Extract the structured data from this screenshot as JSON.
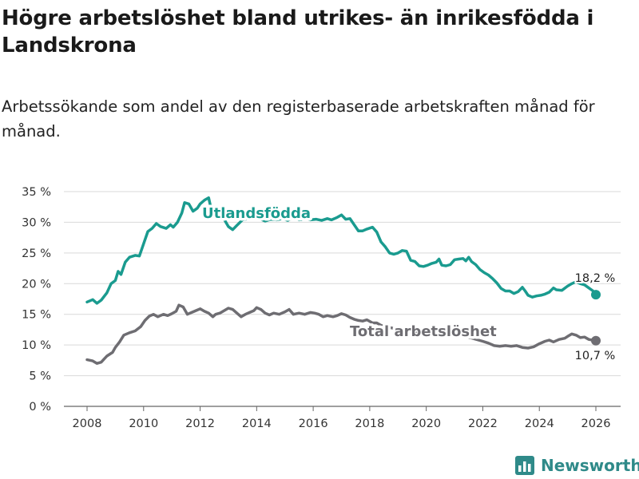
{
  "title": "Högre arbetslöshet bland utrikes- än inrikesfödda i Landskrona",
  "subtitle": "Arbetssökande som andel av den registerbaserade arbetskraften månad för månad.",
  "brand": {
    "name": "Newsworthy",
    "color": "#2f8a89"
  },
  "chart_data": {
    "type": "line",
    "ylim": [
      0,
      35
    ],
    "xlim": [
      2008,
      2026
    ],
    "yticks": [
      {
        "value": 0,
        "label": "0 %"
      },
      {
        "value": 5,
        "label": "5 %"
      },
      {
        "value": 10,
        "label": "10 %"
      },
      {
        "value": 15,
        "label": "15 %"
      },
      {
        "value": 20,
        "label": "20 %"
      },
      {
        "value": 25,
        "label": "25 %"
      },
      {
        "value": 30,
        "label": "30 %"
      },
      {
        "value": 35,
        "label": "35 %"
      }
    ],
    "xticks": [
      {
        "value": 2008,
        "label": "2008"
      },
      {
        "value": 2010,
        "label": "2010"
      },
      {
        "value": 2012,
        "label": "2012"
      },
      {
        "value": 2014,
        "label": "2014"
      },
      {
        "value": 2016,
        "label": "2016"
      },
      {
        "value": 2018,
        "label": "2018"
      },
      {
        "value": 2020,
        "label": "2020"
      },
      {
        "value": 2022,
        "label": "2022"
      },
      {
        "value": 2024,
        "label": "2024"
      },
      {
        "value": 2026,
        "label": "2026"
      }
    ],
    "grid": true,
    "series": [
      {
        "name": "Utlandsfödda",
        "color": "#1a9b8f",
        "end_label": "18,2 %",
        "points": [
          [
            2008.0,
            17.0
          ],
          [
            2008.2,
            17.4
          ],
          [
            2008.35,
            16.8
          ],
          [
            2008.5,
            17.3
          ],
          [
            2008.7,
            18.5
          ],
          [
            2008.85,
            20.0
          ],
          [
            2009.0,
            20.5
          ],
          [
            2009.1,
            22.0
          ],
          [
            2009.2,
            21.5
          ],
          [
            2009.35,
            23.5
          ],
          [
            2009.5,
            24.3
          ],
          [
            2009.7,
            24.6
          ],
          [
            2009.85,
            24.5
          ],
          [
            2010.0,
            26.5
          ],
          [
            2010.15,
            28.5
          ],
          [
            2010.3,
            29.0
          ],
          [
            2010.45,
            29.8
          ],
          [
            2010.6,
            29.3
          ],
          [
            2010.8,
            29.0
          ],
          [
            2010.95,
            29.6
          ],
          [
            2011.05,
            29.2
          ],
          [
            2011.2,
            30.0
          ],
          [
            2011.35,
            31.5
          ],
          [
            2011.45,
            33.2
          ],
          [
            2011.6,
            33.0
          ],
          [
            2011.75,
            31.8
          ],
          [
            2011.9,
            32.3
          ],
          [
            2012.0,
            33.0
          ],
          [
            2012.15,
            33.6
          ],
          [
            2012.3,
            34.0
          ],
          [
            2012.4,
            32.0
          ],
          [
            2012.55,
            32.5
          ],
          [
            2012.7,
            31.5
          ],
          [
            2012.85,
            30.5
          ],
          [
            2013.0,
            29.3
          ],
          [
            2013.15,
            28.8
          ],
          [
            2013.3,
            29.5
          ],
          [
            2013.5,
            30.4
          ],
          [
            2013.7,
            30.6
          ],
          [
            2013.85,
            30.9
          ],
          [
            2014.0,
            30.8
          ],
          [
            2014.15,
            30.5
          ],
          [
            2014.3,
            30.2
          ],
          [
            2014.5,
            30.5
          ],
          [
            2014.7,
            30.4
          ],
          [
            2014.9,
            30.6
          ],
          [
            2015.1,
            30.3
          ],
          [
            2015.3,
            30.8
          ],
          [
            2015.5,
            30.4
          ],
          [
            2015.7,
            30.6
          ],
          [
            2015.9,
            30.4
          ],
          [
            2016.1,
            30.5
          ],
          [
            2016.3,
            30.3
          ],
          [
            2016.5,
            30.6
          ],
          [
            2016.65,
            30.4
          ],
          [
            2016.85,
            30.8
          ],
          [
            2017.0,
            31.2
          ],
          [
            2017.15,
            30.5
          ],
          [
            2017.3,
            30.6
          ],
          [
            2017.45,
            29.6
          ],
          [
            2017.6,
            28.6
          ],
          [
            2017.75,
            28.6
          ],
          [
            2017.9,
            28.9
          ],
          [
            2018.1,
            29.2
          ],
          [
            2018.25,
            28.4
          ],
          [
            2018.4,
            26.8
          ],
          [
            2018.55,
            26.0
          ],
          [
            2018.7,
            25.0
          ],
          [
            2018.85,
            24.8
          ],
          [
            2019.0,
            25.0
          ],
          [
            2019.15,
            25.4
          ],
          [
            2019.3,
            25.3
          ],
          [
            2019.45,
            23.8
          ],
          [
            2019.6,
            23.6
          ],
          [
            2019.75,
            22.9
          ],
          [
            2019.9,
            22.8
          ],
          [
            2020.05,
            23.0
          ],
          [
            2020.2,
            23.3
          ],
          [
            2020.35,
            23.5
          ],
          [
            2020.45,
            24.0
          ],
          [
            2020.55,
            23.0
          ],
          [
            2020.7,
            22.9
          ],
          [
            2020.85,
            23.1
          ],
          [
            2021.0,
            23.9
          ],
          [
            2021.15,
            24.0
          ],
          [
            2021.3,
            24.1
          ],
          [
            2021.4,
            23.7
          ],
          [
            2021.5,
            24.3
          ],
          [
            2021.6,
            23.6
          ],
          [
            2021.75,
            23.1
          ],
          [
            2021.9,
            22.3
          ],
          [
            2022.05,
            21.8
          ],
          [
            2022.2,
            21.4
          ],
          [
            2022.35,
            20.8
          ],
          [
            2022.5,
            20.1
          ],
          [
            2022.65,
            19.2
          ],
          [
            2022.8,
            18.8
          ],
          [
            2022.95,
            18.8
          ],
          [
            2023.1,
            18.4
          ],
          [
            2023.25,
            18.7
          ],
          [
            2023.4,
            19.4
          ],
          [
            2023.5,
            18.8
          ],
          [
            2023.6,
            18.1
          ],
          [
            2023.75,
            17.8
          ],
          [
            2023.9,
            18.0
          ],
          [
            2024.05,
            18.1
          ],
          [
            2024.2,
            18.3
          ],
          [
            2024.35,
            18.6
          ],
          [
            2024.5,
            19.3
          ],
          [
            2024.6,
            19.0
          ],
          [
            2024.8,
            18.9
          ],
          [
            2025.0,
            19.6
          ],
          [
            2025.15,
            20.0
          ],
          [
            2025.3,
            20.3
          ],
          [
            2025.45,
            20.0
          ],
          [
            2025.6,
            19.8
          ],
          [
            2025.75,
            19.3
          ],
          [
            2025.9,
            18.8
          ],
          [
            2026.0,
            18.2
          ]
        ]
      },
      {
        "name": "Total arbetslöshet",
        "color": "#6e6d72",
        "end_label": "10,7 %",
        "points": [
          [
            2008.0,
            7.6
          ],
          [
            2008.2,
            7.4
          ],
          [
            2008.35,
            7.0
          ],
          [
            2008.5,
            7.2
          ],
          [
            2008.7,
            8.2
          ],
          [
            2008.9,
            8.8
          ],
          [
            2009.0,
            9.6
          ],
          [
            2009.15,
            10.5
          ],
          [
            2009.3,
            11.6
          ],
          [
            2009.5,
            12.0
          ],
          [
            2009.7,
            12.3
          ],
          [
            2009.9,
            13.0
          ],
          [
            2010.05,
            14.0
          ],
          [
            2010.2,
            14.7
          ],
          [
            2010.35,
            15.0
          ],
          [
            2010.5,
            14.6
          ],
          [
            2010.7,
            15.0
          ],
          [
            2010.85,
            14.8
          ],
          [
            2011.0,
            15.1
          ],
          [
            2011.15,
            15.5
          ],
          [
            2011.25,
            16.5
          ],
          [
            2011.4,
            16.2
          ],
          [
            2011.55,
            15.0
          ],
          [
            2011.7,
            15.3
          ],
          [
            2011.85,
            15.6
          ],
          [
            2012.0,
            15.9
          ],
          [
            2012.15,
            15.5
          ],
          [
            2012.3,
            15.2
          ],
          [
            2012.45,
            14.6
          ],
          [
            2012.55,
            15.0
          ],
          [
            2012.7,
            15.2
          ],
          [
            2012.85,
            15.6
          ],
          [
            2013.0,
            16.0
          ],
          [
            2013.15,
            15.8
          ],
          [
            2013.3,
            15.2
          ],
          [
            2013.45,
            14.6
          ],
          [
            2013.6,
            15.0
          ],
          [
            2013.75,
            15.3
          ],
          [
            2013.9,
            15.6
          ],
          [
            2014.0,
            16.1
          ],
          [
            2014.15,
            15.8
          ],
          [
            2014.3,
            15.2
          ],
          [
            2014.45,
            14.9
          ],
          [
            2014.6,
            15.2
          ],
          [
            2014.8,
            15.0
          ],
          [
            2015.0,
            15.4
          ],
          [
            2015.15,
            15.8
          ],
          [
            2015.3,
            15.0
          ],
          [
            2015.5,
            15.2
          ],
          [
            2015.7,
            15.0
          ],
          [
            2015.9,
            15.3
          ],
          [
            2016.05,
            15.2
          ],
          [
            2016.2,
            15.0
          ],
          [
            2016.35,
            14.6
          ],
          [
            2016.5,
            14.8
          ],
          [
            2016.7,
            14.6
          ],
          [
            2016.85,
            14.8
          ],
          [
            2017.0,
            15.1
          ],
          [
            2017.15,
            14.9
          ],
          [
            2017.3,
            14.5
          ],
          [
            2017.45,
            14.2
          ],
          [
            2017.6,
            14.0
          ],
          [
            2017.75,
            13.9
          ],
          [
            2017.9,
            14.1
          ],
          [
            2018.1,
            13.6
          ],
          [
            2018.25,
            13.6
          ],
          [
            2018.4,
            13.2
          ],
          [
            2018.55,
            13.0
          ],
          [
            2018.75,
            12.8
          ],
          [
            2018.95,
            12.6
          ],
          [
            2019.15,
            12.4
          ],
          [
            2019.35,
            12.3
          ],
          [
            2019.55,
            12.1
          ],
          [
            2019.75,
            12.0
          ],
          [
            2019.95,
            11.8
          ],
          [
            2020.2,
            11.9
          ],
          [
            2020.5,
            11.8
          ],
          [
            2020.8,
            11.6
          ],
          [
            2021.1,
            11.5
          ],
          [
            2021.4,
            11.4
          ],
          [
            2021.7,
            11.0
          ],
          [
            2022.0,
            10.6
          ],
          [
            2022.2,
            10.3
          ],
          [
            2022.4,
            9.9
          ],
          [
            2022.6,
            9.8
          ],
          [
            2022.8,
            9.9
          ],
          [
            2023.0,
            9.8
          ],
          [
            2023.2,
            9.9
          ],
          [
            2023.4,
            9.6
          ],
          [
            2023.6,
            9.5
          ],
          [
            2023.8,
            9.7
          ],
          [
            2024.0,
            10.2
          ],
          [
            2024.2,
            10.6
          ],
          [
            2024.35,
            10.8
          ],
          [
            2024.5,
            10.5
          ],
          [
            2024.7,
            10.9
          ],
          [
            2024.9,
            11.1
          ],
          [
            2025.0,
            11.4
          ],
          [
            2025.15,
            11.8
          ],
          [
            2025.3,
            11.6
          ],
          [
            2025.45,
            11.2
          ],
          [
            2025.6,
            11.3
          ],
          [
            2025.75,
            10.9
          ],
          [
            2026.0,
            10.7
          ]
        ]
      }
    ]
  }
}
